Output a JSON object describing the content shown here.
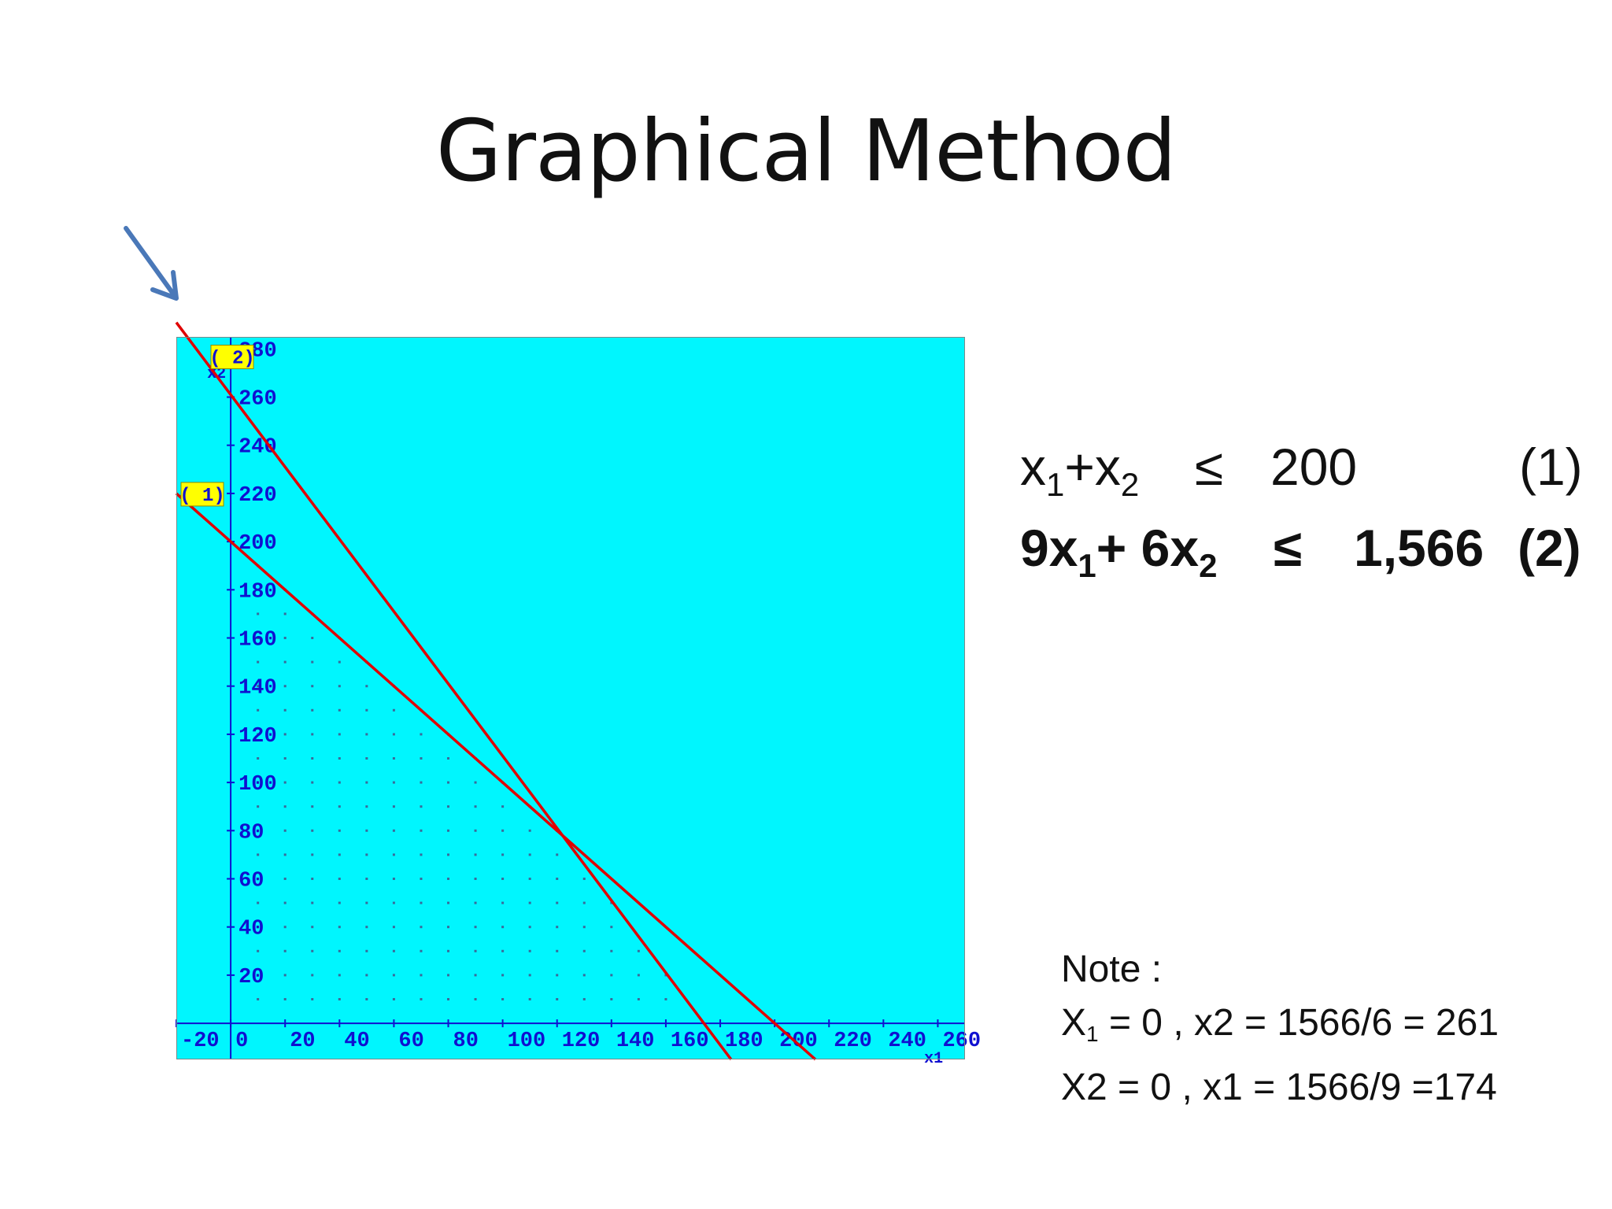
{
  "slide": {
    "title": "Graphical Method"
  },
  "constraints": [
    {
      "lhs_coef1": "x",
      "lhs_sub1": "1",
      "plus": "+x",
      "lhs_sub2": "2",
      "relation": "≤",
      "rhs": "200",
      "label": "(1)"
    },
    {
      "lhs_coef1": "9x",
      "lhs_sub1": "1",
      "plus": "+ 6x",
      "lhs_sub2": "2",
      "relation": "≤",
      "rhs": "1,566",
      "label": "(2)"
    }
  ],
  "note": {
    "heading": "Note :",
    "line1_var": "X",
    "line1_sub": "1",
    "line1_rest": "= 0 , x2 = 1566/6 = 261",
    "line2": "X2 = 0 , x1 = 1566/9 =174"
  },
  "chart_data": {
    "type": "line",
    "background_color": "#00f6fe",
    "axis_color": "#1010d0",
    "line_color": "#e00000",
    "xlabel": "x1",
    "ylabel": "x2",
    "xlim": [
      -20,
      270
    ],
    "ylim": [
      -15,
      285
    ],
    "x_ticks": [
      "-20",
      "0",
      "20",
      "40",
      "60",
      "80",
      "100",
      "120",
      "140",
      "160",
      "180",
      "200",
      "220",
      "240",
      "260"
    ],
    "y_ticks": [
      "20",
      "40",
      "60",
      "80",
      "100",
      "120",
      "140",
      "160",
      "180",
      "200",
      "220",
      "240",
      "260",
      "280"
    ],
    "x_tick_values": [
      -20,
      0,
      20,
      40,
      60,
      80,
      100,
      120,
      140,
      160,
      180,
      200,
      220,
      240,
      260
    ],
    "y_tick_values": [
      20,
      40,
      60,
      80,
      100,
      120,
      140,
      160,
      180,
      200,
      220,
      240,
      260,
      280
    ],
    "series": [
      {
        "name": "( 1)",
        "points": [
          [
            -20,
            220
          ],
          [
            215,
            -15
          ]
        ]
      },
      {
        "name": "( 2)",
        "points": [
          [
            -20,
            291
          ],
          [
            184,
            -15
          ]
        ]
      }
    ],
    "feasible_region": [
      [
        0,
        0
      ],
      [
        174,
        0
      ],
      [
        122,
        78
      ],
      [
        0,
        200
      ]
    ],
    "grid_dots": true
  }
}
